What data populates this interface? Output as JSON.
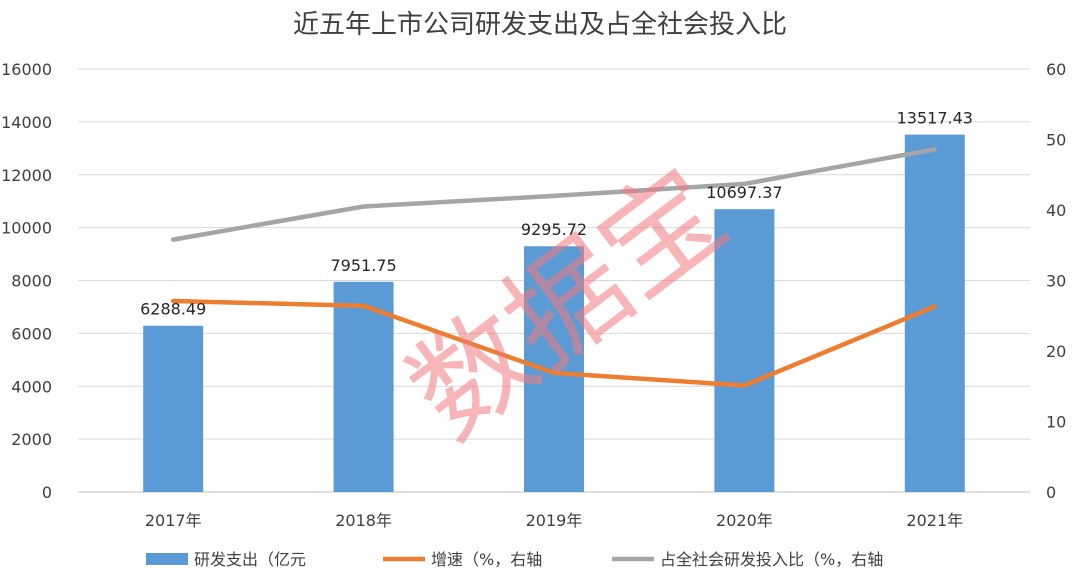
{
  "chart_data": {
    "type": "bar",
    "title": "近五年上市公司研发支出及占全社会投入比",
    "categories": [
      "2017年",
      "2018年",
      "2019年",
      "2020年",
      "2021年"
    ],
    "series": [
      {
        "name": "研发支出（亿元",
        "type": "bar",
        "axis": "left",
        "color": "#5b9bd5",
        "values": [
          6288.49,
          7951.75,
          9295.72,
          10697.37,
          13517.43
        ],
        "labels": [
          "6288.49",
          "7951.75",
          "9295.72",
          "10697.37",
          "13517.43"
        ]
      },
      {
        "name": "增速（%，右轴",
        "type": "line",
        "axis": "right",
        "color": "#ed7d31",
        "values": [
          27.1,
          26.4,
          16.9,
          15.1,
          26.3
        ]
      },
      {
        "name": "占全社会研发投入比（%，右轴",
        "type": "line",
        "axis": "right",
        "color": "#a5a5a5",
        "values": [
          35.8,
          40.5,
          42.0,
          43.7,
          48.6
        ]
      }
    ],
    "y_left": {
      "min": 0,
      "max": 16000,
      "step": 2000,
      "ticks": [
        "0",
        "2000",
        "4000",
        "6000",
        "8000",
        "10000",
        "12000",
        "14000",
        "16000"
      ]
    },
    "y_right": {
      "min": 0,
      "max": 60,
      "step": 10,
      "ticks": [
        "0",
        "10",
        "20",
        "30",
        "40",
        "50",
        "60"
      ]
    },
    "grid": true,
    "legend_position": "bottom"
  },
  "watermark": "数据宝"
}
